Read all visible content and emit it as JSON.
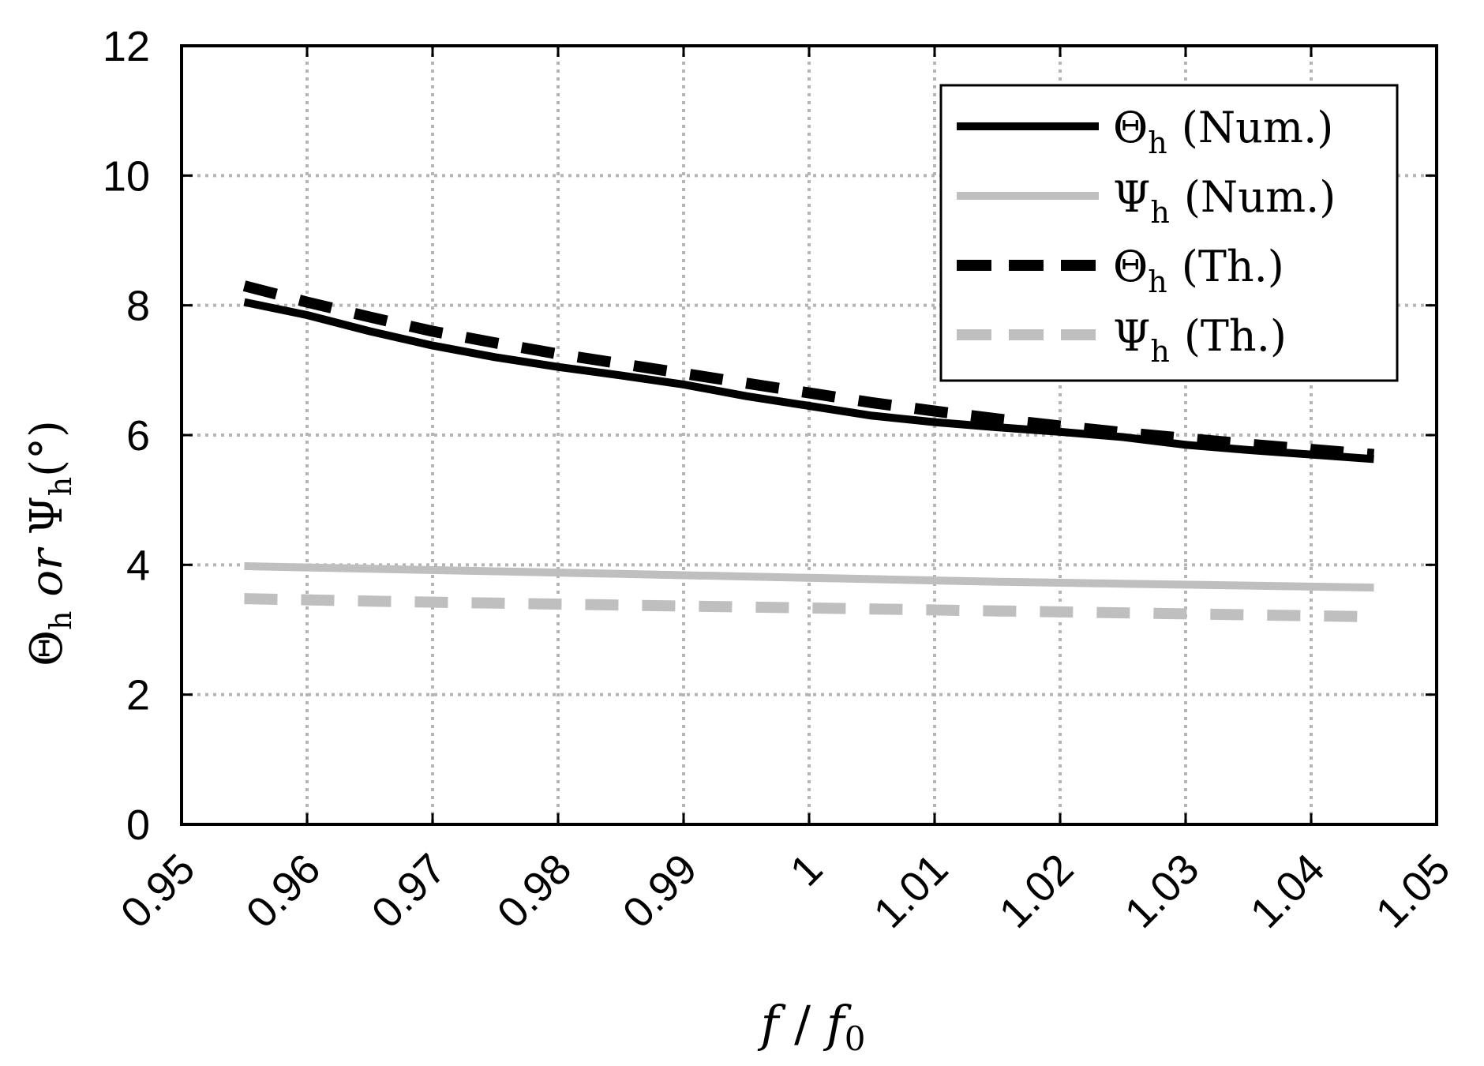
{
  "chart_data": {
    "type": "line",
    "title": "",
    "xlabel": "f / f0",
    "ylabel": "Θh or Ψh(°)",
    "xlim": [
      0.95,
      1.05
    ],
    "ylim": [
      0,
      12
    ],
    "x_ticks": [
      "0.95",
      "0.96",
      "0.97",
      "0.98",
      "0.99",
      "1",
      "1.01",
      "1.02",
      "1.03",
      "1.04",
      "1.05"
    ],
    "y_ticks": [
      "0",
      "2",
      "4",
      "6",
      "8",
      "10",
      "12"
    ],
    "grid": true,
    "legend_position": "top-right",
    "series": [
      {
        "name": "Θh (Num.)",
        "symbol": "Θ",
        "sub": "h",
        "tag": "(Num.)",
        "color": "#000000",
        "dash": "solid",
        "x": [
          0.955,
          0.96,
          0.965,
          0.97,
          0.975,
          0.98,
          0.985,
          0.99,
          0.995,
          1.0,
          1.005,
          1.01,
          1.015,
          1.02,
          1.025,
          1.03,
          1.035,
          1.04,
          1.045
        ],
        "y": [
          8.05,
          7.85,
          7.6,
          7.38,
          7.2,
          7.05,
          6.92,
          6.78,
          6.6,
          6.45,
          6.3,
          6.2,
          6.12,
          6.05,
          5.97,
          5.85,
          5.77,
          5.7,
          5.63
        ]
      },
      {
        "name": "Ψh (Num.)",
        "symbol": "Ψ",
        "sub": "h",
        "tag": "(Num.)",
        "color": "#bfbfbf",
        "dash": "solid",
        "x": [
          0.955,
          0.965,
          0.975,
          0.985,
          0.995,
          1.005,
          1.015,
          1.025,
          1.035,
          1.045
        ],
        "y": [
          3.98,
          3.94,
          3.9,
          3.86,
          3.82,
          3.78,
          3.74,
          3.71,
          3.68,
          3.65
        ]
      },
      {
        "name": "Θh (Th.)",
        "symbol": "Θ",
        "sub": "h",
        "tag": "(Th.)",
        "color": "#000000",
        "dash": "dashed",
        "x": [
          0.955,
          0.96,
          0.965,
          0.97,
          0.975,
          0.98,
          0.985,
          0.99,
          0.995,
          1.0,
          1.005,
          1.01,
          1.015,
          1.02,
          1.025,
          1.03,
          1.035,
          1.04,
          1.045
        ],
        "y": [
          8.3,
          8.05,
          7.82,
          7.6,
          7.42,
          7.25,
          7.1,
          6.95,
          6.8,
          6.65,
          6.5,
          6.37,
          6.25,
          6.14,
          6.04,
          5.95,
          5.86,
          5.78,
          5.7
        ]
      },
      {
        "name": "Ψh (Th.)",
        "symbol": "Ψ",
        "sub": "h",
        "tag": "(Th.)",
        "color": "#bfbfbf",
        "dash": "dashed",
        "x": [
          0.955,
          0.965,
          0.975,
          0.985,
          0.995,
          1.005,
          1.015,
          1.025,
          1.035,
          1.045
        ],
        "y": [
          3.48,
          3.44,
          3.41,
          3.38,
          3.35,
          3.32,
          3.29,
          3.26,
          3.23,
          3.2
        ]
      }
    ]
  }
}
